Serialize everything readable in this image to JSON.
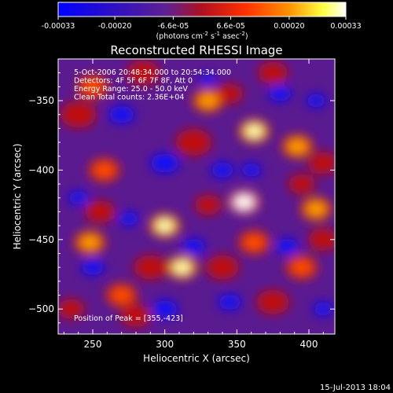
{
  "colorbar": {
    "tick_labels": [
      "-0.00033",
      "-0.00020",
      "-6.6e-05",
      "6.6e-05",
      "0.00020",
      "0.00033"
    ],
    "tick_values": [
      -0.00033,
      -0.0002,
      -6.6e-05,
      6.6e-05,
      0.0002,
      0.00033
    ],
    "range": [
      -0.00033,
      0.00033
    ],
    "units_prefix": "(photons cm",
    "units_exp1": "-2",
    "units_mid": " s",
    "units_exp2": "-1",
    "units_mid2": " asec",
    "units_exp3": "-2",
    "units_suffix": ")"
  },
  "chart_data": {
    "type": "heatmap",
    "title": "Reconstructed RHESSI Image",
    "xlabel": "Heliocentric X (arcsec)",
    "ylabel": "Heliocentric Y (arcsec)",
    "xlim": [
      226,
      418
    ],
    "ylim": [
      -518,
      -320
    ],
    "x_ticks": [
      250,
      300,
      350,
      400
    ],
    "y_ticks": [
      -500,
      -450,
      -400,
      -350
    ],
    "x_tick_labels": [
      "250",
      "300",
      "350",
      "400"
    ],
    "y_tick_labels": [
      "−500",
      "−450",
      "−400",
      "−350"
    ],
    "info_lines": [
      " 5-Oct-2006 20:48:34.000 to 20:54:34.000",
      "Detectors: 4F 5F 6F 7F 8F, Att 0",
      "Energy Range: 25.0 - 50.0 keV",
      "Clean    Total counts: 2.36E+04"
    ],
    "peak_label": "Position of Peak = [355,-423]",
    "peak": [
      355,
      -423
    ],
    "colormap": "blue-purple-red-yellow-white",
    "colors": [
      "#0000ff",
      "#6020a0",
      "#c00000",
      "#ff6000",
      "#ffff00",
      "#ffffff"
    ],
    "bright_sources": [
      {
        "x": 355,
        "y": -423,
        "level": 1.0
      },
      {
        "x": 362,
        "y": -372,
        "level": 0.9
      },
      {
        "x": 300,
        "y": -440,
        "level": 0.85
      },
      {
        "x": 312,
        "y": -470,
        "level": 0.8
      },
      {
        "x": 405,
        "y": -428,
        "level": 0.75
      },
      {
        "x": 392,
        "y": -383,
        "level": 0.7
      },
      {
        "x": 330,
        "y": -350,
        "level": 0.65
      },
      {
        "x": 248,
        "y": -452,
        "level": 0.65
      },
      {
        "x": 258,
        "y": -400,
        "level": 0.6
      },
      {
        "x": 362,
        "y": -452,
        "level": 0.6
      },
      {
        "x": 395,
        "y": -470,
        "level": 0.55
      },
      {
        "x": 270,
        "y": -490,
        "level": 0.55
      },
      {
        "x": 250,
        "y": -340,
        "level": 0.5
      }
    ]
  },
  "footer": {
    "timestamp": "15-Jul-2013 18:04"
  }
}
